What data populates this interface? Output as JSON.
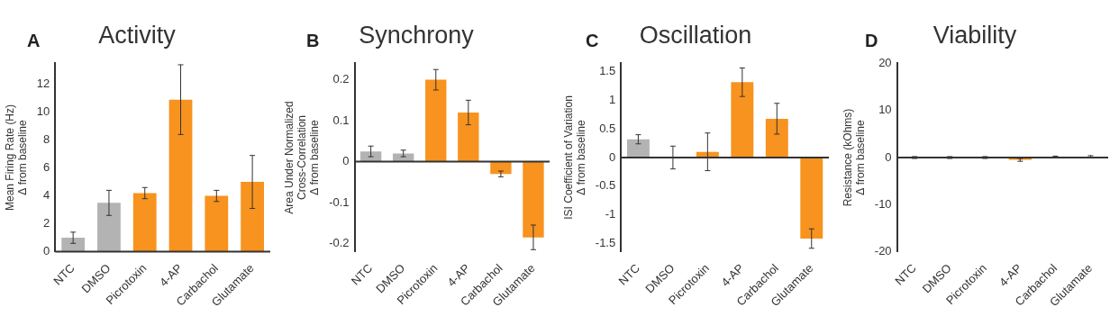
{
  "chart_data": [
    {
      "type": "bar",
      "panel": "A",
      "title": "Activity",
      "ylabel": [
        "Mean Firing Rate (Hz)",
        "Δ from baseline"
      ],
      "categories": [
        "NTC",
        "DMSO",
        "Picrotoxin",
        "4-AP",
        "Carbachol",
        "Glutamate"
      ],
      "values": [
        1.0,
        3.5,
        4.2,
        10.9,
        4.0,
        5.0
      ],
      "errors": [
        0.4,
        0.9,
        0.4,
        2.5,
        0.4,
        1.9
      ],
      "colors": [
        "#b3b3b3",
        "#b3b3b3",
        "#f7931e",
        "#f7931e",
        "#f7931e",
        "#f7931e"
      ],
      "ylim": [
        0,
        13.5
      ],
      "yticks": [
        0,
        2,
        4,
        6,
        8,
        10,
        12
      ],
      "grid": false
    },
    {
      "type": "bar",
      "panel": "B",
      "title": "Synchrony",
      "ylabel": [
        "Area Under Normalized",
        "Cross-Correlation",
        "Δ from baseline"
      ],
      "categories": [
        "NTC",
        "DMSO",
        "Picrotoxin",
        "4-AP",
        "Carbachol",
        "Glutamate"
      ],
      "values": [
        0.025,
        0.02,
        0.2,
        0.12,
        -0.03,
        -0.185
      ],
      "errors": [
        0.013,
        0.008,
        0.025,
        0.03,
        0.007,
        0.03
      ],
      "colors": [
        "#b3b3b3",
        "#b3b3b3",
        "#f7931e",
        "#f7931e",
        "#f7931e",
        "#f7931e"
      ],
      "ylim": [
        -0.22,
        0.24
      ],
      "yticks": [
        -0.2,
        -0.1,
        0,
        0.1,
        0.2
      ],
      "grid": false
    },
    {
      "type": "bar",
      "panel": "C",
      "title": "Oscillation",
      "ylabel": [
        "ISI Coefficient of Variation",
        "Δ from baseline"
      ],
      "categories": [
        "NTC",
        "DMSO",
        "Picrotoxin",
        "4-AP",
        "Carbachol",
        "Glutamate"
      ],
      "values": [
        0.32,
        0.0,
        0.1,
        1.32,
        0.68,
        -1.42
      ],
      "errors": [
        0.08,
        0.2,
        0.33,
        0.25,
        0.27,
        0.17
      ],
      "colors": [
        "#b3b3b3",
        "#b3b3b3",
        "#f7931e",
        "#f7931e",
        "#f7931e",
        "#f7931e"
      ],
      "ylim": [
        -1.65,
        1.65
      ],
      "yticks": [
        -1.5,
        -1,
        -0.5,
        0,
        0.5,
        1,
        1.5
      ],
      "grid": false
    },
    {
      "type": "bar",
      "panel": "D",
      "title": "Viability",
      "ylabel": [
        "Resistance (kOhms)",
        "Δ from baseline"
      ],
      "categories": [
        "NTC",
        "DMSO",
        "Picrotoxin",
        "4-AP",
        "Carbachol",
        "Glutamate"
      ],
      "values": [
        0.0,
        0.0,
        0.0,
        -0.5,
        0.1,
        0.2
      ],
      "errors": [
        0.2,
        0.2,
        0.2,
        0.3,
        0.2,
        0.2
      ],
      "colors": [
        "#b3b3b3",
        "#b3b3b3",
        "#f7931e",
        "#f7931e",
        "#f7931e",
        "#f7931e"
      ],
      "ylim": [
        -20,
        20
      ],
      "yticks": [
        -20,
        -10,
        0,
        10,
        20
      ],
      "grid": false
    }
  ]
}
